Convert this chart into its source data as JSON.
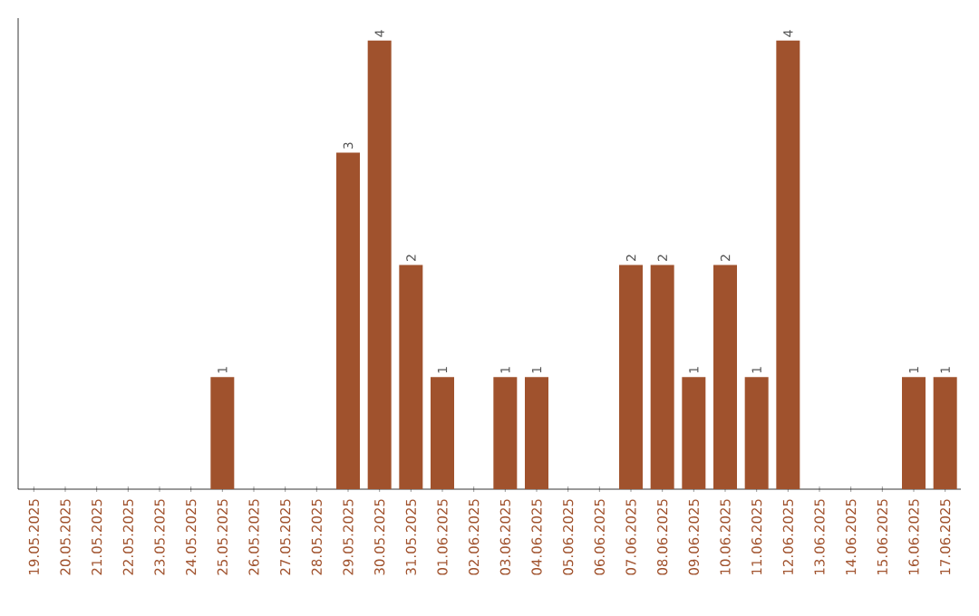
{
  "chart_data": {
    "type": "bar",
    "color": "#a0522d",
    "categories": [
      "19.05.2025",
      "20.05.2025",
      "21.05.2025",
      "22.05.2025",
      "23.05.2025",
      "24.05.2025",
      "25.05.2025",
      "26.05.2025",
      "27.05.2025",
      "28.05.2025",
      "29.05.2025",
      "30.05.2025",
      "31.05.2025",
      "01.06.2025",
      "02.06.2025",
      "03.06.2025",
      "04.06.2025",
      "05.06.2025",
      "06.06.2025",
      "07.06.2025",
      "08.06.2025",
      "09.06.2025",
      "10.06.2025",
      "11.06.2025",
      "12.06.2025",
      "13.06.2025",
      "14.06.2025",
      "15.06.2025",
      "16.06.2025",
      "17.06.2025"
    ],
    "values": [
      0,
      0,
      0,
      0,
      0,
      0,
      1,
      0,
      0,
      0,
      3,
      4,
      2,
      1,
      0,
      1,
      1,
      0,
      0,
      2,
      2,
      1,
      2,
      1,
      4,
      0,
      0,
      0,
      1,
      1
    ],
    "value_labels": [
      null,
      null,
      null,
      null,
      null,
      null,
      "1",
      null,
      null,
      null,
      "3",
      "4",
      "2",
      "1",
      null,
      "1",
      "1",
      null,
      null,
      "2",
      "2",
      "1",
      "2",
      "1",
      "4",
      null,
      null,
      null,
      "1",
      "1"
    ],
    "grid": false
  }
}
